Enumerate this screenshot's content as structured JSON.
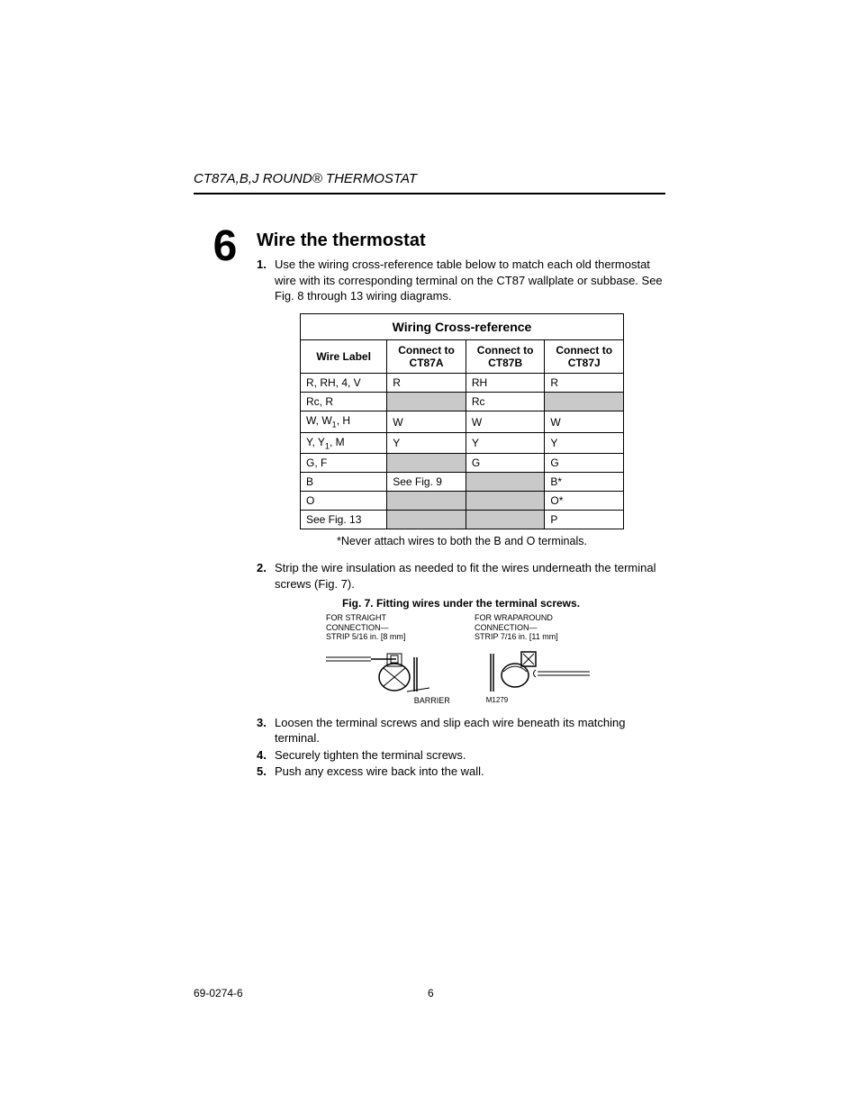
{
  "header": {
    "title": "CT87A,B,J ROUND® THERMOSTAT"
  },
  "step_number": "6",
  "section_title": "Wire the thermostat",
  "list": {
    "item1": {
      "n": "1.",
      "text": "Use the wiring cross-reference table below to match each old thermostat wire with its corresponding terminal on the CT87 wallplate or subbase.  See Fig. 8 through 13 wiring diagrams."
    },
    "item2": {
      "n": "2.",
      "text": "Strip the wire insulation as needed to fit the wires underneath the terminal screws (Fig. 7)."
    },
    "item3": {
      "n": "3.",
      "text": "Loosen the terminal screws and slip each wire beneath its matching terminal."
    },
    "item4": {
      "n": "4.",
      "text": "Securely tighten the terminal screws."
    },
    "item5": {
      "n": "5.",
      "text": "Push any excess wire back into the wall."
    }
  },
  "table": {
    "title": "Wiring Cross-reference",
    "columns": [
      "Wire Label",
      "Connect to CT87A",
      "Connect to CT87B",
      "Connect to CT87J"
    ],
    "head": {
      "c0": "Wire Label",
      "c1a": "Connect to",
      "c1b": "CT87A",
      "c2a": "Connect to",
      "c2b": "CT87B",
      "c3a": "Connect to",
      "c3b": "CT87J"
    },
    "rows": [
      {
        "c0": "R, RH, 4, V",
        "c1": "R",
        "c2": "RH",
        "c3": "R",
        "shade": [
          false,
          false,
          false,
          false
        ]
      },
      {
        "c0": "Rc, R",
        "c1": "",
        "c2": "Rc",
        "c3": "",
        "shade": [
          false,
          true,
          false,
          true
        ]
      },
      {
        "c0": "W, W1, H",
        "c1": "W",
        "c2": "W",
        "c3": "W",
        "shade": [
          false,
          false,
          false,
          false
        ],
        "sub1": true
      },
      {
        "c0": "Y, Y1, M",
        "c1": "Y",
        "c2": "Y",
        "c3": "Y",
        "shade": [
          false,
          false,
          false,
          false
        ],
        "sub1": true
      },
      {
        "c0": "G, F",
        "c1": "",
        "c2": "G",
        "c3": "G",
        "shade": [
          false,
          true,
          false,
          false
        ]
      },
      {
        "c0": "B",
        "c1": "See Fig. 9",
        "c2": "",
        "c3": "B*",
        "shade": [
          false,
          false,
          true,
          false
        ]
      },
      {
        "c0": "O",
        "c1": "",
        "c2": "",
        "c3": "O*",
        "shade": [
          false,
          true,
          true,
          false
        ]
      },
      {
        "c0": "See Fig. 13",
        "c1": "",
        "c2": "",
        "c3": "P",
        "shade": [
          false,
          true,
          true,
          false
        ]
      }
    ],
    "note": "*Never attach wires to both the B and O terminals.",
    "colors": {
      "border": "#000000",
      "shaded_bg": "#c9c9c9",
      "bg": "#ffffff"
    }
  },
  "figure7": {
    "caption": "Fig. 7. Fitting wires under the terminal screws.",
    "left_label_l1": "FOR STRAIGHT",
    "left_label_l2": "CONNECTION—",
    "left_label_l3": "STRIP 5/16 in. [8 mm]",
    "right_label_l1": "FOR WRAPAROUND",
    "right_label_l2": "CONNECTION—",
    "right_label_l3": "STRIP 7/16 in. [11 mm]",
    "barrier_label": "BARRIER",
    "ref": "M1279"
  },
  "footer": {
    "doc": "69-0274-6",
    "page": "6"
  }
}
